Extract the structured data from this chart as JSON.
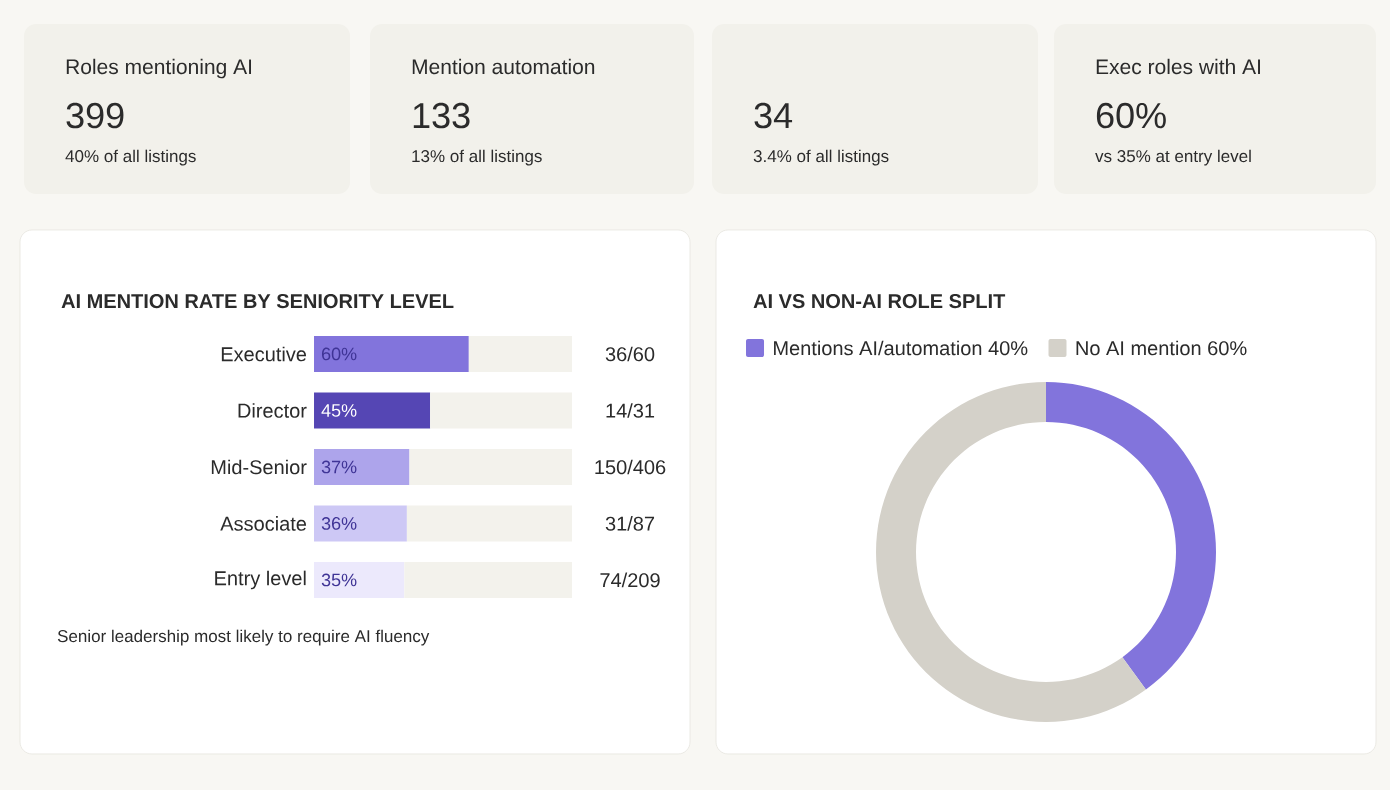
{
  "chart_data": [
    {
      "type": "other",
      "title": "Roles mentioning AI",
      "annotations": [
        "399",
        "40% of all listings"
      ]
    },
    {
      "type": "other",
      "title": "Mention automation",
      "annotations": [
        "133",
        "13% of all listings"
      ]
    },
    {
      "type": "other",
      "annotations": [
        "34",
        "3.4% of all listings"
      ]
    },
    {
      "type": "other",
      "title": "Exec roles with AI",
      "annotations": [
        "60%",
        "vs 35% at entry level"
      ]
    },
    {
      "type": "bar",
      "orientation": "horizontal",
      "stacked": true,
      "title": "AI MENTION RATE BY SENIORITY LEVEL",
      "categories": [
        "Executive",
        "Director",
        "Mid-Senior",
        "Associate",
        "Entry level"
      ],
      "xlim": [
        0,
        100
      ],
      "tick_labels": "y",
      "series": [
        {
          "colors": [
            "#8274dc",
            "#5546b4",
            "#ada4eb",
            "#cdc8f5",
            "#ece9fc"
          ],
          "values": [
            60,
            45,
            37,
            36,
            35
          ],
          "value_labels": [
            "60%",
            "45%",
            "37%",
            "36%",
            "35%"
          ]
        },
        {
          "color": "#f3f2ec",
          "values": [
            40,
            55,
            63,
            64,
            65
          ]
        }
      ],
      "annotations": [
        "36/60",
        "14/31",
        "150/406",
        "31/87",
        "74/209",
        "Senior leadership most likely to require AI fluency"
      ]
    },
    {
      "type": "donut",
      "title": "AI VS NON-AI ROLE SPLIT",
      "categories": [
        "Mentions AI/automation 40%",
        "No AI mention 60%"
      ],
      "values": [
        40,
        60
      ],
      "colors": [
        "#8274dc",
        "#d4d1c9"
      ],
      "legend": "top left"
    }
  ]
}
